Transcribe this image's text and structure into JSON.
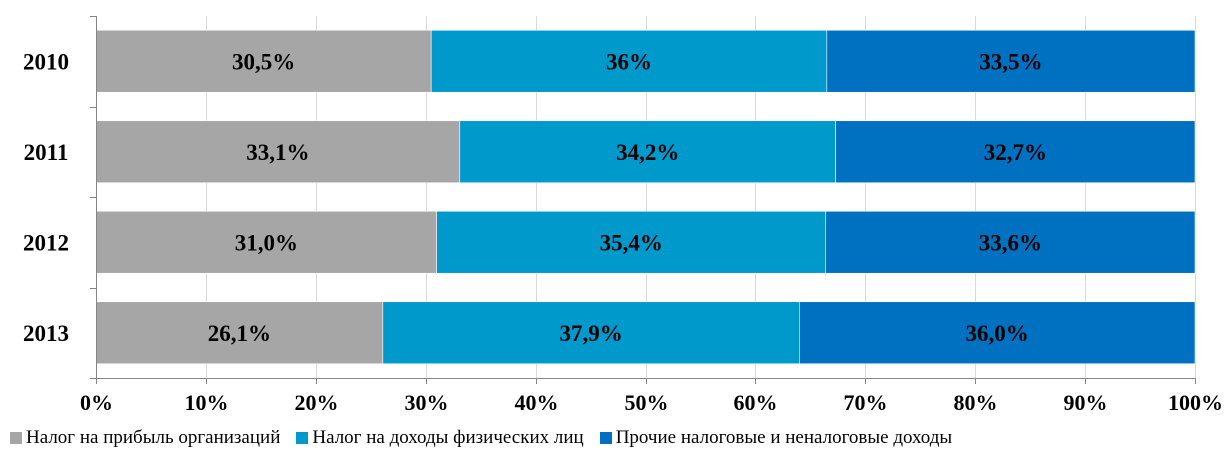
{
  "chart_data": {
    "type": "bar",
    "orientation": "horizontal",
    "stacked": "percent",
    "categories": [
      "2010",
      "2011",
      "2012",
      "2013"
    ],
    "series": [
      {
        "name": "Налог на прибыль организаций",
        "color": "#a6a6a6",
        "values": [
          30.5,
          33.1,
          31.0,
          26.1
        ],
        "labels": [
          "30,5%",
          "33,1%",
          "31,0%",
          "26,1%"
        ]
      },
      {
        "name": "Налог на доходы физических лиц",
        "color": "#0099cc",
        "values": [
          36,
          34.2,
          35.4,
          37.9
        ],
        "labels": [
          "36%",
          "34,2%",
          "35,4%",
          "37,9%"
        ]
      },
      {
        "name": "Прочие налоговые и неналоговые доходы",
        "color": "#0070c0",
        "values": [
          33.5,
          32.7,
          33.6,
          36.0
        ],
        "labels": [
          "33,5%",
          "32,7%",
          "33,6%",
          "36,0%"
        ]
      }
    ],
    "x_ticks": [
      "0%",
      "10%",
      "20%",
      "30%",
      "40%",
      "50%",
      "60%",
      "70%",
      "80%",
      "90%",
      "100%"
    ],
    "xlim": [
      0,
      100
    ],
    "grid": true,
    "legend_position": "bottom"
  }
}
